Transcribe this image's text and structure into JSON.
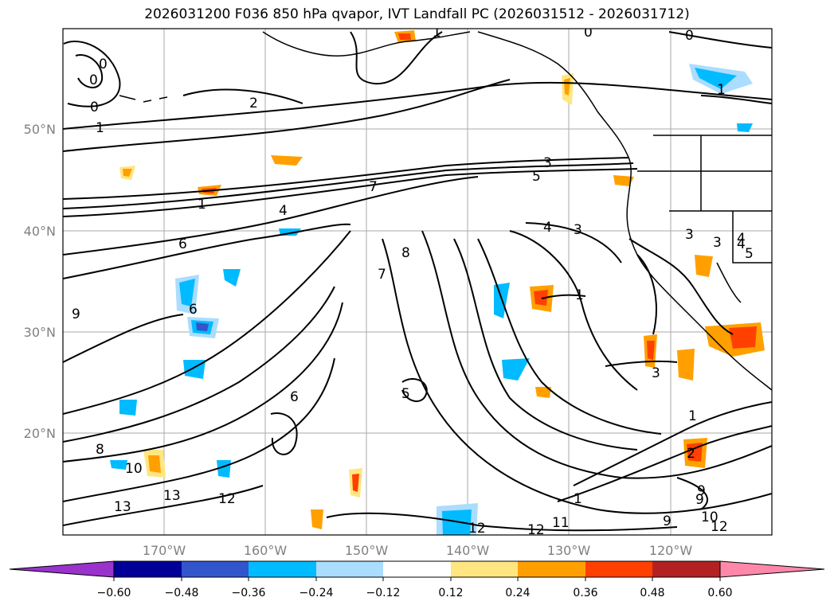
{
  "title": "2026031200 F036 850 hPa qvapor, IVT Landfall PC (2026031512 - 2026031712)",
  "lat_ticks": [
    "50°N",
    "40°N",
    "30°N",
    "20°N"
  ],
  "lon_ticks": [
    "170°W",
    "160°W",
    "150°W",
    "140°W",
    "130°W",
    "120°W"
  ],
  "colorbar": {
    "ticks": [
      "−0.60",
      "−0.48",
      "−0.36",
      "−0.24",
      "−0.12",
      "0.12",
      "0.24",
      "0.36",
      "0.48",
      "0.60"
    ],
    "colors": [
      "#9933cc",
      "#000099",
      "#3355cc",
      "#00bbff",
      "#aaddff",
      "#ffffff",
      "#ffe680",
      "#ffa000",
      "#ff4000",
      "#b22222",
      "#ff88aa"
    ]
  },
  "contour_labels": [
    "0",
    "0",
    "1",
    "1",
    "2",
    "0",
    "0",
    "0",
    "1",
    "3",
    "5",
    "1",
    "4",
    "6",
    "4",
    "3",
    "7",
    "8",
    "7",
    "6",
    "9",
    "6",
    "1",
    "3",
    "9",
    "5",
    "1",
    "3",
    "4",
    "3",
    "8",
    "10",
    "13",
    "13",
    "12",
    "12",
    "12",
    "11",
    "9",
    "10",
    "12",
    "9",
    "2",
    "1",
    "4",
    "5"
  ],
  "map": {
    "field": "850 hPa qvapor",
    "overlay": "IVT Landfall PC",
    "extent_lon": [
      -180,
      -110
    ],
    "extent_lat": [
      10,
      60
    ],
    "colors": {
      "land_outline": "#000000",
      "grid": "#aaaaaa",
      "contour": "#000000"
    }
  }
}
